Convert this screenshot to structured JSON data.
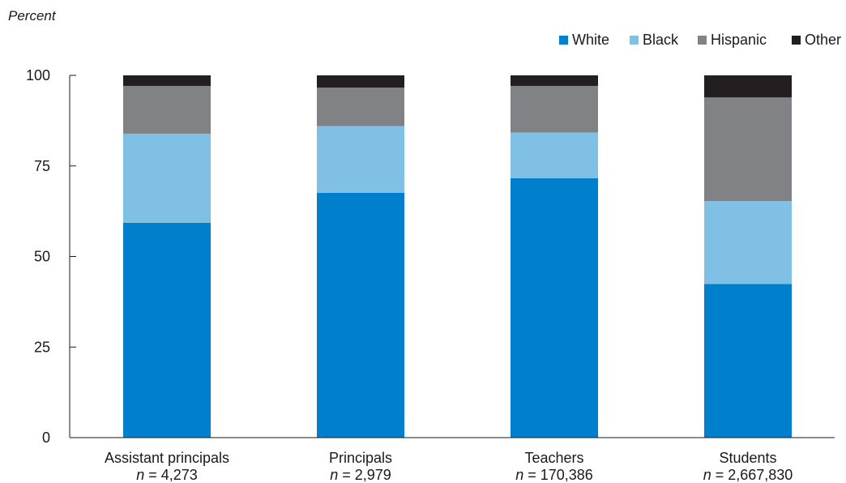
{
  "chart_data": {
    "type": "bar",
    "stacked": true,
    "ylabel": "Percent",
    "ylim": [
      0,
      100
    ],
    "yticks": [
      0,
      25,
      50,
      75,
      100
    ],
    "grid": false,
    "legend_position": "top-right",
    "categories": [
      {
        "label": "Assistant principals",
        "n_prefix": "n",
        "n_rest": " = 4,273"
      },
      {
        "label": "Principals",
        "n_prefix": "n",
        "n_rest": " = 2,979"
      },
      {
        "label": "Teachers",
        "n_prefix": "n",
        "n_rest": " = 170,386"
      },
      {
        "label": "Students",
        "n_prefix": "n",
        "n_rest": " = 2,667,830"
      }
    ],
    "series": [
      {
        "name": "White",
        "color": "#0080cc",
        "values": [
          59.3,
          67.6,
          71.6,
          42.4
        ]
      },
      {
        "name": "Black",
        "color": "#80c0e4",
        "values": [
          24.6,
          18.4,
          12.6,
          22.9
        ]
      },
      {
        "name": "Hispanic",
        "color": "#808285",
        "values": [
          13.2,
          10.6,
          12.9,
          28.6
        ]
      },
      {
        "name": "Other",
        "color": "#231f20",
        "values": [
          2.9,
          3.4,
          2.9,
          6.1
        ]
      }
    ]
  }
}
